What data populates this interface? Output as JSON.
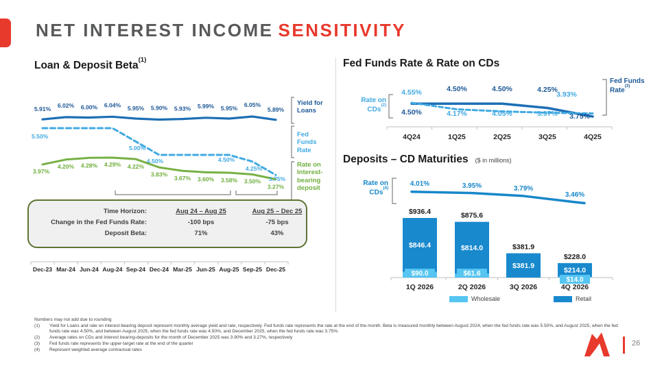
{
  "slide": {
    "title": {
      "main": "NET INTEREST INCOME",
      "accent": "SENSITIVITY"
    },
    "page_number": "26"
  },
  "loan_deposit": {
    "title": "Loan & Deposit Beta",
    "title_sup": "(1)",
    "labels": {
      "yield": "Yield for Loans",
      "fed": "Fed Funds Rate",
      "deposit": "Rate on Interest-bearing deposit"
    },
    "table": {
      "rows": [
        {
          "label": "Time Horizon:",
          "col1": "Aug 24 – Aug 25",
          "col2": "Aug 25 – Dec 25"
        },
        {
          "label": "Change in the Fed Funds Rate:",
          "col1": "-100 bps",
          "col2": "-75 bps"
        },
        {
          "label": "Deposit Beta:",
          "col1": "71%",
          "col2": "43%"
        }
      ]
    }
  },
  "fed_cd": {
    "title": "Fed Funds Rate & Rate on CDs",
    "left_label": {
      "text": "Rate on CDs",
      "sup": "(2)"
    },
    "right_label": {
      "text": "Fed Funds Rate",
      "sup": "(3)"
    }
  },
  "cd_maturities": {
    "title": "Deposits – CD Maturities",
    "subtitle": "($ in millions)",
    "left_label": {
      "text": "Rate on CDs",
      "sup": "(4)"
    },
    "legend": [
      {
        "label": "Wholesale"
      },
      {
        "label": "Retail"
      }
    ]
  },
  "footnotes": {
    "preamble": "Numbers may not add due to rounding",
    "items": [
      {
        "marker": "(1)",
        "text": "Yield for Loans and rate on interest-bearing deposit represent monthly average yield and rate, respectively. Fed funds rate represents the rate at the end of the month. Beta is measured monthly between August 2024, when the fed funds rate was 5.50%, and August 2025, when the fed funds rate was 4.50%, and between August 2025, when the fed funds rate was 4.50%, and December 2025, when the fed funds rate was 3.75%."
      },
      {
        "marker": "(2)",
        "text": "Average rates on CDs and interest bearing-deposits for the month of December 2025 was 3.90% and 3.27%, respectively"
      },
      {
        "marker": "(3)",
        "text": "Fed funds rate represents the upper-target rate at the end of the quarter"
      },
      {
        "marker": "(4)",
        "text": "Represent weighted average contractual rates"
      }
    ]
  },
  "colors": {
    "accent_red": "#e8392d",
    "title_gray": "#58595b",
    "dark_blue_text": "#1c5796",
    "dark_blue_line": "#1d6fb5",
    "light_blue": "#41a9e2",
    "green": "#77b043",
    "medium_blue": "#1787c9",
    "retail_bar": "#1989ce",
    "wholesale_bar": "#56c5f2",
    "axis_gray": "#bfbfbf",
    "table_border": "#5e7332"
  },
  "chart_data": [
    {
      "id": "loan_deposit_beta",
      "type": "line",
      "title": "Loan & Deposit Beta (1)",
      "unit": "%",
      "x": [
        "Dec-23",
        "Mar-24",
        "Jun-24",
        "Aug-24",
        "Sep-24",
        "Dec-24",
        "Mar-25",
        "Jun-25",
        "Aug-25",
        "Sep-25",
        "Dec-25"
      ],
      "series": [
        {
          "name": "Yield for Loans",
          "style": "solid",
          "color": "#1d6fb5",
          "values": [
            5.91,
            6.02,
            6.0,
            6.04,
            5.95,
            5.9,
            5.93,
            5.99,
            5.95,
            6.05,
            5.89
          ]
        },
        {
          "name": "Fed Funds Rate",
          "style": "dashed",
          "color": "#41a9e2",
          "values": [
            5.5,
            5.5,
            5.5,
            5.5,
            5.0,
            4.5,
            4.5,
            4.5,
            4.5,
            4.25,
            3.75
          ],
          "shown_labels": [
            {
              "index": 0,
              "text": "5.50%"
            },
            {
              "index": 4,
              "text": "5.00%"
            },
            {
              "index": 5,
              "text": "4.50%"
            },
            {
              "index": 8,
              "text": "4.50%"
            },
            {
              "index": 9,
              "text": "4.25%"
            },
            {
              "index": 10,
              "text": "3.75%"
            }
          ]
        },
        {
          "name": "Rate on Interest-bearing deposit",
          "style": "solid",
          "color": "#77b043",
          "values": [
            3.97,
            4.2,
            4.28,
            4.29,
            4.22,
            3.83,
            3.67,
            3.6,
            3.58,
            3.5,
            3.27
          ]
        }
      ],
      "annotation_spans": [
        "Aug 24 – Aug 25",
        "Aug 25 – Dec 25"
      ],
      "summary_table": {
        "headers": [
          "Time Horizon:",
          "Aug 24 – Aug 25",
          "Aug 25 – Dec 25"
        ],
        "rows": [
          [
            "Change in the Fed Funds Rate:",
            "-100 bps",
            "-75 bps"
          ],
          [
            "Deposit Beta:",
            "71%",
            "43%"
          ]
        ]
      }
    },
    {
      "id": "fed_funds_rate_and_rate_on_cds",
      "type": "line",
      "title": "Fed Funds Rate & Rate on CDs",
      "unit": "%",
      "x": [
        "4Q24",
        "1Q25",
        "2Q25",
        "3Q25",
        "4Q25"
      ],
      "series": [
        {
          "name": "Fed Funds Rate (3)",
          "style": "solid",
          "color": "#1d6fb5",
          "values": [
            4.5,
            4.5,
            4.5,
            4.25,
            3.75
          ]
        },
        {
          "name": "Rate on CDs (2)",
          "style": "dashed",
          "color": "#41a9e2",
          "values": [
            4.55,
            4.17,
            4.05,
            3.97,
            3.93
          ]
        }
      ]
    },
    {
      "id": "deposits_cd_maturities",
      "type": "bar",
      "title": "Deposits – CD Maturities",
      "unit": "$ in millions",
      "stacked": true,
      "legend_position": "bottom",
      "x": [
        "1Q 2026",
        "2Q 2026",
        "3Q 2026",
        "4Q 2026"
      ],
      "series": [
        {
          "name": "Wholesale",
          "color": "#56c5f2",
          "values": [
            90.0,
            61.6,
            0,
            14.0
          ],
          "labels": [
            "$90.0",
            "$61.6",
            "",
            "$14.0"
          ]
        },
        {
          "name": "Retail",
          "color": "#1989ce",
          "values": [
            846.4,
            814.0,
            381.9,
            214.0
          ],
          "labels": [
            "$846.4",
            "$814.0",
            "$381.9",
            "$214.0"
          ]
        }
      ],
      "totals": [
        936.4,
        875.6,
        381.9,
        228.0
      ],
      "total_labels": [
        "$936.4",
        "$875.6",
        "$381.9",
        "$228.0"
      ],
      "line_overlay": {
        "name": "Rate on CDs (4)",
        "color": "#1787c9",
        "values": [
          4.01,
          3.95,
          3.79,
          3.46
        ],
        "labels": [
          "4.01%",
          "3.95%",
          "3.79%",
          "3.46%"
        ]
      }
    }
  ]
}
